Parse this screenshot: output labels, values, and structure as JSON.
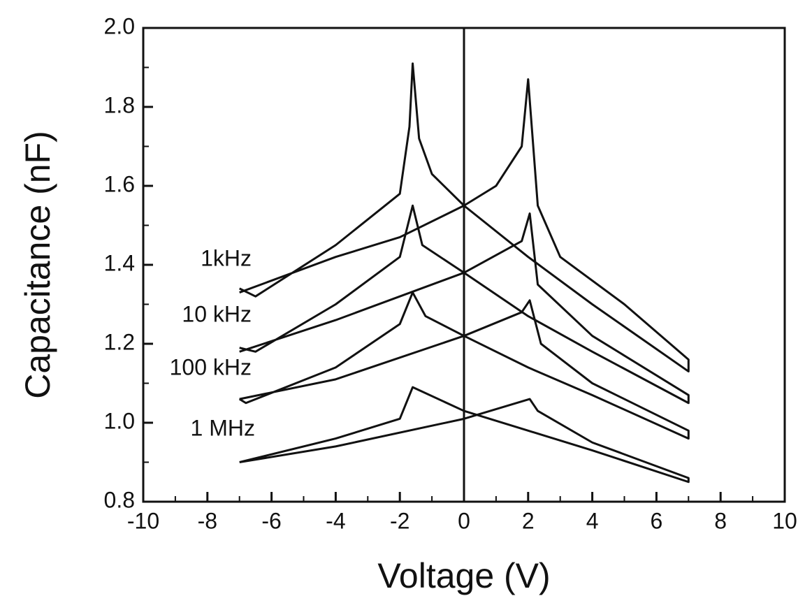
{
  "chart_data": {
    "type": "line",
    "xlabel": "Voltage (V)",
    "ylabel": "Capacitance (nF)",
    "xlim": [
      -10,
      10
    ],
    "xticks": [
      -10,
      -8,
      -6,
      -4,
      -2,
      0,
      2,
      4,
      6,
      8,
      10
    ],
    "ylim": [
      0.8,
      2.0
    ],
    "yticks": [
      0.8,
      {
        "value": 1.0,
        "label": "1.0"
      },
      1.2,
      1.4,
      1.6,
      1.8,
      {
        "value": 2.0,
        "label": "2.0"
      }
    ],
    "vline": 0,
    "series": [
      {
        "name": "1kHz",
        "color": "#111111",
        "x": [
          -7,
          -4,
          -2,
          0,
          1,
          1.8,
          2,
          2.3,
          3,
          5,
          7,
          7,
          4,
          2,
          0,
          -1,
          -1.4,
          -1.6,
          -1.7,
          -2,
          -4,
          -6.5,
          -7
        ],
        "values": [
          1.33,
          1.42,
          1.47,
          1.55,
          1.6,
          1.7,
          1.87,
          1.55,
          1.42,
          1.3,
          1.16,
          1.13,
          1.3,
          1.42,
          1.55,
          1.63,
          1.72,
          1.91,
          1.75,
          1.58,
          1.45,
          1.32,
          1.34
        ]
      },
      {
        "name": "10 kHz",
        "color": "#111111",
        "x": [
          -7,
          -4,
          0,
          1.8,
          2.05,
          2.3,
          4,
          7,
          7,
          4,
          2,
          0,
          -1.3,
          -1.6,
          -2,
          -4,
          -6.5,
          -7
        ],
        "values": [
          1.18,
          1.26,
          1.38,
          1.46,
          1.53,
          1.35,
          1.22,
          1.07,
          1.05,
          1.18,
          1.27,
          1.38,
          1.45,
          1.55,
          1.42,
          1.3,
          1.18,
          1.19
        ]
      },
      {
        "name": "100 kHz",
        "color": "#111111",
        "x": [
          -7,
          -4,
          0,
          1.8,
          2.05,
          2.4,
          4,
          7,
          7,
          4,
          2,
          0,
          -1.2,
          -1.6,
          -2,
          -4,
          -6.8,
          -7
        ],
        "values": [
          1.06,
          1.11,
          1.22,
          1.28,
          1.31,
          1.2,
          1.1,
          0.98,
          0.96,
          1.07,
          1.14,
          1.22,
          1.27,
          1.33,
          1.25,
          1.14,
          1.05,
          1.06
        ]
      },
      {
        "name": "1 MHz",
        "color": "#111111",
        "x": [
          -7,
          -4,
          0,
          2.05,
          2.3,
          4,
          7,
          7,
          4,
          2,
          0,
          -1.6,
          -2,
          -4,
          -7
        ],
        "values": [
          0.9,
          0.94,
          1.01,
          1.06,
          1.03,
          0.95,
          0.86,
          0.85,
          0.93,
          0.98,
          1.03,
          1.09,
          1.01,
          0.96,
          0.9
        ]
      }
    ]
  }
}
